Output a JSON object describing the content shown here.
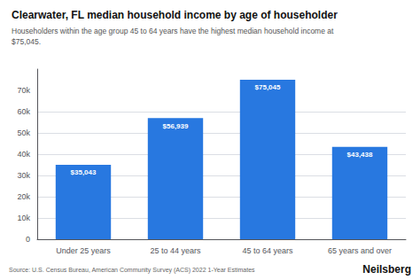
{
  "chart_data": {
    "type": "bar",
    "title": "Clearwater, FL median household income by age of householder",
    "subtitle": "Householders within the age group 45 to 64 years have the highest median household income at\n$75,045.",
    "categories": [
      "Under 25 years",
      "25 to 44 years",
      "45 to 64 years",
      "65 years and over"
    ],
    "values": [
      35043,
      56939,
      75045,
      43438
    ],
    "value_labels": [
      "$35,043",
      "$56,939",
      "$75,045",
      "$43,438"
    ],
    "data_labels": true,
    "color": "#2878e0",
    "ylim": [
      0,
      80000
    ],
    "yticks": [
      0,
      {
        "value": 10000,
        "label": "10k"
      },
      {
        "value": 20000,
        "label": "20k"
      },
      {
        "value": 30000,
        "label": "30k"
      },
      {
        "value": 40000,
        "label": "40k"
      },
      {
        "value": 50000,
        "label": "50k"
      },
      {
        "value": 60000,
        "label": "60k"
      },
      {
        "value": 70000,
        "label": "70k"
      }
    ],
    "grid": true,
    "annotations": [
      "Source: U.S. Census Bureau, American Community Survey (ACS) 2022 1-Year Estimates",
      "Neilsberg"
    ]
  }
}
